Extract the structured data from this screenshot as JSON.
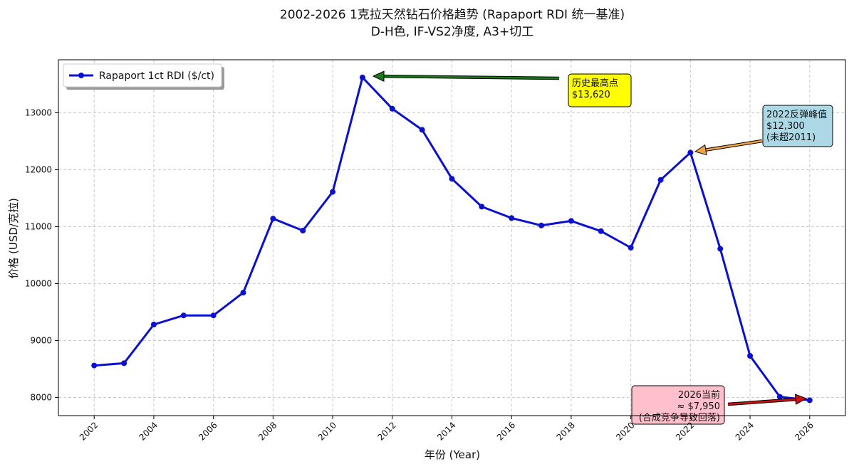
{
  "chart_data": {
    "type": "line",
    "title": [
      "2002-2026 1克拉天然钻石价格趋势 (Rapaport RDI 统一基准)",
      "D-H色, IF-VS2净度, A3+切工"
    ],
    "xlabel": "年份 (Year)",
    "ylabel": "价格 (USD/克拉)",
    "x": [
      2002,
      2003,
      2004,
      2005,
      2006,
      2007,
      2008,
      2009,
      2010,
      2011,
      2012,
      2013,
      2014,
      2015,
      2016,
      2017,
      2018,
      2019,
      2020,
      2021,
      2022,
      2023,
      2024,
      2025,
      2026
    ],
    "x_ticks": [
      "2002",
      "2004",
      "2006",
      "2008",
      "2010",
      "2012",
      "2014",
      "2016",
      "2018",
      "2020",
      "2022",
      "2024",
      "2026"
    ],
    "y_ticks": [
      "8000",
      "9000",
      "10000",
      "11000",
      "12000",
      "13000"
    ],
    "xlim": [
      2000.8,
      2027.2
    ],
    "ylim": [
      7680,
      13930
    ],
    "grid": true,
    "legend_position": "top-left",
    "series": [
      {
        "name": "Rapaport 1ct RDI ($/ct)",
        "color": "#0a10d0",
        "values": [
          8560,
          8600,
          9280,
          9440,
          9440,
          9840,
          11140,
          10930,
          11610,
          13620,
          13070,
          12700,
          11840,
          11350,
          11150,
          11020,
          11100,
          10920,
          10630,
          11820,
          12300,
          10610,
          8730,
          8010,
          7950
        ]
      }
    ],
    "annotations": [
      {
        "lines": [
          "历史最高点",
          "$13,620"
        ],
        "x": 2011,
        "y": 13620,
        "box_color": "#ffff00",
        "arrow_color": "#1a7a1a"
      },
      {
        "lines": [
          "2022反弹峰值",
          "$12,300",
          "(未超2011)"
        ],
        "x": 2022,
        "y": 12300,
        "box_color": "#add8e6",
        "arrow_color": "#f5a442"
      },
      {
        "lines": [
          "2026当前",
          "≈ $7,950",
          "(合成竞争导致回落)"
        ],
        "x": 2026,
        "y": 7950,
        "box_color": "#ffc0cb",
        "arrow_color": "#cc1111"
      }
    ]
  }
}
